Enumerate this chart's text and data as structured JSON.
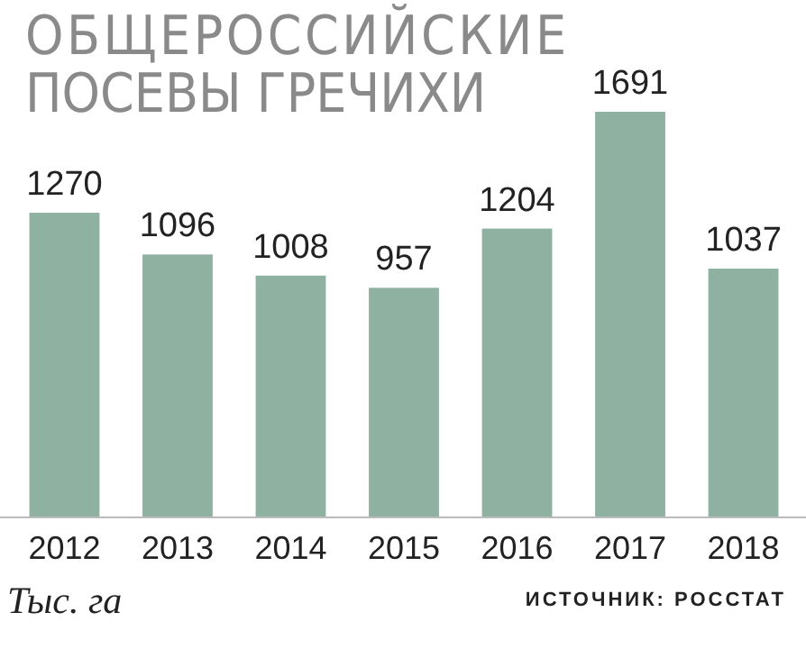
{
  "chart_data": {
    "type": "bar",
    "title": "ОБЩЕРОССИЙСКИЕ ПОСЕВЫ ГРЕЧИХИ",
    "annotations": [
      "Тыс. га",
      "ИСТОЧНИК: РОССТАТ"
    ],
    "categories": [
      "2012",
      "2013",
      "2014",
      "2015",
      "2016",
      "2017",
      "2018"
    ],
    "values": [
      1270,
      1096,
      1008,
      957,
      1204,
      1691,
      1037
    ],
    "color": "#8fb1a2",
    "data_labels": true
  }
}
